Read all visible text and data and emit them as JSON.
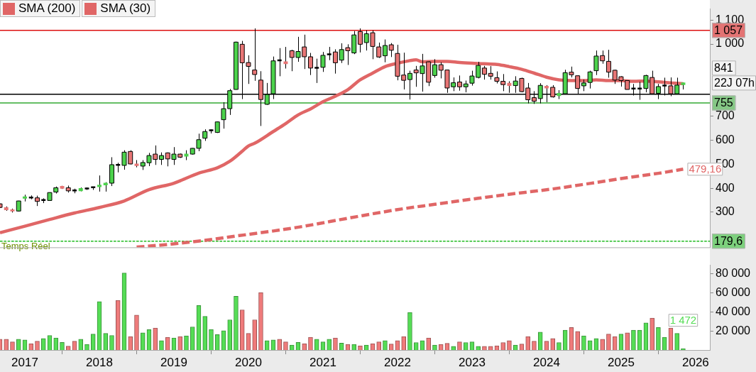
{
  "chart_data": [
    {
      "type": "candlestick",
      "x": [
        "2016-09",
        "2016-10",
        "2016-11",
        "2016-12",
        "2017-01",
        "2017-02",
        "2017-03",
        "2017-04",
        "2017-05",
        "2017-06",
        "2017-07",
        "2017-08",
        "2017-09",
        "2017-10",
        "2017-11",
        "2017-12",
        "2018-01",
        "2018-02",
        "2018-03",
        "2018-04",
        "2018-05",
        "2018-06",
        "2018-07",
        "2018-08",
        "2018-09",
        "2018-10",
        "2018-11",
        "2018-12",
        "2019-01",
        "2019-02",
        "2019-03",
        "2019-04",
        "2019-05",
        "2019-06",
        "2019-07",
        "2019-08",
        "2019-09",
        "2019-10",
        "2019-11",
        "2019-12",
        "2020-01",
        "2020-02",
        "2020-03",
        "2020-04",
        "2020-05",
        "2020-06",
        "2020-07",
        "2020-08",
        "2020-09",
        "2020-10",
        "2020-11",
        "2020-12",
        "2021-01",
        "2021-02",
        "2021-03",
        "2021-04",
        "2021-05",
        "2021-06",
        "2021-07",
        "2021-08",
        "2021-09",
        "2021-10",
        "2021-11",
        "2021-12",
        "2022-01",
        "2022-02",
        "2022-03",
        "2022-04",
        "2022-05",
        "2022-06",
        "2022-07",
        "2022-08",
        "2022-09",
        "2022-10",
        "2022-11",
        "2022-12",
        "2023-01",
        "2023-02",
        "2023-03",
        "2023-04",
        "2023-05",
        "2023-06",
        "2023-07",
        "2023-08",
        "2023-09",
        "2023-10",
        "2023-11",
        "2023-12",
        "2024-01",
        "2024-02",
        "2024-03",
        "2024-04",
        "2024-05",
        "2024-06",
        "2024-07",
        "2024-08",
        "2024-09",
        "2024-10",
        "2024-11",
        "2024-12",
        "2025-01",
        "2025-02",
        "2025-03",
        "2025-04",
        "2025-05",
        "2025-06",
        "2025-07",
        "2025-08",
        "2025-09",
        "2025-10",
        "2025-11"
      ],
      "ohlc": [
        [
          335,
          336,
          318,
          320
        ],
        [
          319,
          324,
          306,
          310
        ],
        [
          310,
          315,
          299,
          305
        ],
        [
          305,
          348,
          303,
          347
        ],
        [
          358,
          373,
          345,
          364
        ],
        [
          361,
          370,
          354,
          361
        ],
        [
          360,
          369,
          326,
          345
        ],
        [
          351,
          358,
          338,
          351
        ],
        [
          349,
          383,
          348,
          382
        ],
        [
          384,
          407,
          378,
          402
        ],
        [
          408,
          410,
          397,
          400
        ],
        [
          402,
          411,
          382,
          389
        ],
        [
          391,
          398,
          379,
          391
        ],
        [
          389,
          403,
          387,
          399
        ],
        [
          399,
          403,
          393,
          399
        ],
        [
          404,
          405,
          393,
          404
        ],
        [
          406,
          453,
          386,
          413
        ],
        [
          414,
          425,
          386,
          421
        ],
        [
          421,
          529,
          409,
          498
        ],
        [
          497,
          506,
          466,
          497
        ],
        [
          495,
          558,
          477,
          550
        ],
        [
          553,
          558,
          499,
          501
        ],
        [
          501,
          517,
          487,
          494
        ],
        [
          492,
          517,
          476,
          507
        ],
        [
          506,
          547,
          492,
          536
        ],
        [
          542,
          578,
          497,
          520
        ],
        [
          520,
          549,
          497,
          536
        ],
        [
          547,
          549,
          491,
          522
        ],
        [
          520,
          571,
          497,
          542
        ],
        [
          542,
          544,
          526,
          529
        ],
        [
          533,
          558,
          517,
          542
        ],
        [
          542,
          567,
          540,
          566
        ],
        [
          566,
          627,
          554,
          602
        ],
        [
          608,
          645,
          597,
          636
        ],
        [
          641,
          645,
          628,
          641
        ],
        [
          632,
          678,
          630,
          676
        ],
        [
          685,
          758,
          648,
          731
        ],
        [
          731,
          813,
          705,
          806
        ],
        [
          811,
          1010,
          810,
          1008
        ],
        [
          999,
          1013,
          771,
          922
        ],
        [
          923,
          953,
          834,
          907
        ],
        [
          892,
          1065,
          847,
          873
        ],
        [
          850,
          887,
          659,
          769
        ],
        [
          749,
          838,
          747,
          790
        ],
        [
          793,
          948,
          771,
          930
        ],
        [
          932,
          983,
          866,
          932
        ],
        [
          926,
          988,
          898,
          918
        ],
        [
          972,
          976,
          887,
          944
        ],
        [
          944,
          1030,
          926,
          969
        ],
        [
          988,
          1039,
          896,
          947
        ],
        [
          947,
          963,
          871,
          900
        ],
        [
          901,
          939,
          838,
          901
        ],
        [
          903,
          967,
          884,
          953
        ],
        [
          957,
          988,
          933,
          957
        ],
        [
          967,
          978,
          877,
          922
        ],
        [
          933,
          1003,
          921,
          977
        ],
        [
          985,
          999,
          913,
          972
        ],
        [
          963,
          1054,
          958,
          1038
        ],
        [
          1052,
          1065,
          965,
          999
        ],
        [
          1006,
          1057,
          973,
          1043
        ],
        [
          1047,
          1057,
          937,
          990
        ],
        [
          988,
          1006,
          942,
          946
        ],
        [
          951,
          1019,
          924,
          994
        ],
        [
          997,
          1004,
          946,
          974
        ],
        [
          961,
          997,
          849,
          866
        ],
        [
          871,
          964,
          811,
          849
        ],
        [
          852,
          889,
          769,
          878
        ],
        [
          892,
          909,
          822,
          880
        ],
        [
          877,
          959,
          802,
          909
        ],
        [
          926,
          928,
          825,
          841
        ],
        [
          869,
          937,
          860,
          914
        ],
        [
          914,
          924,
          857,
          891
        ],
        [
          892,
          893,
          797,
          817
        ],
        [
          822,
          861,
          804,
          839
        ],
        [
          842,
          869,
          806,
          822
        ],
        [
          822,
          848,
          799,
          834
        ],
        [
          837,
          889,
          827,
          867
        ],
        [
          861,
          926,
          857,
          911
        ],
        [
          900,
          909,
          852,
          874
        ],
        [
          878,
          908,
          852,
          866
        ],
        [
          860,
          886,
          836,
          845
        ],
        [
          845,
          875,
          804,
          831
        ],
        [
          837,
          845,
          797,
          827
        ],
        [
          827,
          866,
          797,
          846
        ],
        [
          857,
          860,
          799,
          802
        ],
        [
          817,
          838,
          753,
          768
        ],
        [
          777,
          804,
          751,
          762
        ],
        [
          773,
          837,
          753,
          828
        ],
        [
          824,
          829,
          758,
          817
        ],
        [
          820,
          829,
          777,
          780
        ],
        [
          785,
          808,
          771,
          795
        ],
        [
          793,
          893,
          792,
          881
        ],
        [
          883,
          906,
          861,
          872
        ],
        [
          868,
          870,
          793,
          815
        ],
        [
          826,
          852,
          804,
          838
        ],
        [
          840,
          889,
          815,
          884
        ],
        [
          889,
          973,
          871,
          950
        ],
        [
          952,
          973,
          918,
          930
        ],
        [
          928,
          976,
          860,
          883
        ],
        [
          891,
          893,
          834,
          850
        ],
        [
          864,
          866,
          823,
          848
        ],
        [
          848,
          849,
          811,
          811
        ],
        [
          815,
          834,
          786,
          815
        ],
        [
          815,
          843,
          768,
          815
        ],
        [
          815,
          872,
          799,
          869
        ],
        [
          861,
          889,
          793,
          793
        ],
        [
          795,
          834,
          771,
          823
        ],
        [
          827,
          860,
          786,
          827
        ],
        [
          826,
          861,
          783,
          793
        ],
        [
          793,
          860,
          793,
          829
        ],
        [
          831,
          840,
          811,
          838
        ]
      ],
      "colors": [
        "#e87575",
        "#e87575",
        "#e87575",
        "#4cd24c",
        "#4cd24c",
        "#000000",
        "#e87575",
        "#000000",
        "#4cd24c",
        "#4cd24c",
        "#e87575",
        "#e87575",
        "#000000",
        "#4cd24c",
        "#000000",
        "#000000",
        "#4cd24c",
        "#4cd24c",
        "#4cd24c",
        "#000000",
        "#4cd24c",
        "#e87575",
        "#e87575",
        "#4cd24c",
        "#4cd24c",
        "#e87575",
        "#4cd24c",
        "#e87575",
        "#4cd24c",
        "#e87575",
        "#4cd24c",
        "#4cd24c",
        "#4cd24c",
        "#4cd24c",
        "#000000",
        "#4cd24c",
        "#4cd24c",
        "#4cd24c",
        "#4cd24c",
        "#e87575",
        "#e87575",
        "#e87575",
        "#e87575",
        "#4cd24c",
        "#4cd24c",
        "#000000",
        "#e87575",
        "#e87575",
        "#4cd24c",
        "#e87575",
        "#e87575",
        "#000000",
        "#4cd24c",
        "#000000",
        "#e87575",
        "#4cd24c",
        "#e87575",
        "#4cd24c",
        "#e87575",
        "#4cd24c",
        "#e87575",
        "#e87575",
        "#4cd24c",
        "#e87575",
        "#e87575",
        "#e87575",
        "#4cd24c",
        "#e87575",
        "#4cd24c",
        "#e87575",
        "#4cd24c",
        "#e87575",
        "#e87575",
        "#4cd24c",
        "#e87575",
        "#4cd24c",
        "#4cd24c",
        "#4cd24c",
        "#e87575",
        "#e87575",
        "#e87575",
        "#e87575",
        "#e87575",
        "#4cd24c",
        "#e87575",
        "#e87575",
        "#e87575",
        "#4cd24c",
        "#e87575",
        "#e87575",
        "#4cd24c",
        "#4cd24c",
        "#e87575",
        "#e87575",
        "#4cd24c",
        "#4cd24c",
        "#4cd24c",
        "#e87575",
        "#e87575",
        "#e87575",
        "#e87575",
        "#e87575",
        "#000000",
        "#000000",
        "#4cd24c",
        "#e87575",
        "#4cd24c",
        "#000000",
        "#e87575",
        "#4cd24c",
        "#4cd24c"
      ],
      "series": [
        {
          "name": "SMA (200)",
          "type": "line",
          "color": "#e06666",
          "line_style": "dashed",
          "x": [
            "2018-07",
            "2018-12",
            "2019-06",
            "2019-11",
            "2020-05",
            "2020-10",
            "2021-05",
            "2022-01",
            "2022-07",
            "2023-02",
            "2023-08",
            "2024-02",
            "2024-08",
            "2025-02",
            "2025-07",
            "2025-11"
          ],
          "values": [
            155,
            166,
            183,
            201,
            222,
            242,
            275,
            311,
            333,
            358,
            378,
            397,
            420,
            444,
            462,
            479.16
          ],
          "value_labels": [
            null,
            null,
            null,
            null,
            null,
            null,
            null,
            null,
            null,
            null,
            null,
            null,
            null,
            null,
            null,
            "479,16"
          ]
        },
        {
          "name": "SMA (30)",
          "type": "line",
          "color": "#e06666",
          "x": [
            "2016-09",
            "2017-01",
            "2017-05",
            "2017-09",
            "2018-01",
            "2018-05",
            "2018-09",
            "2019-01",
            "2019-05",
            "2019-08",
            "2019-10",
            "2019-12",
            "2020-01",
            "2020-02",
            "2020-05",
            "2020-07",
            "2020-09",
            "2020-11",
            "2021-01",
            "2021-03",
            "2021-05",
            "2021-07",
            "2021-09",
            "2021-11",
            "2022-01",
            "2022-03",
            "2022-04",
            "2022-05",
            "2022-07",
            "2022-09",
            "2022-11",
            "2023-01",
            "2023-03",
            "2023-05",
            "2023-07",
            "2023-09",
            "2023-11",
            "2024-01",
            "2024-03",
            "2024-05",
            "2024-07",
            "2024-09",
            "2024-11",
            "2025-01",
            "2025-03",
            "2025-05",
            "2025-07",
            "2025-09",
            "2025-11"
          ],
          "values": [
            215,
            242,
            270,
            297,
            320,
            347,
            394,
            421,
            463,
            485,
            512,
            554,
            576,
            587,
            636,
            669,
            705,
            730,
            760,
            783,
            810,
            851,
            879,
            906,
            920,
            931,
            934,
            926,
            928,
            928,
            923,
            920,
            918,
            915,
            906,
            895,
            879,
            862,
            851,
            848,
            848,
            851,
            848,
            848,
            845,
            846,
            843,
            838,
            835
          ]
        }
      ],
      "xlim": [
        "2016-09",
        "2026-03-10"
      ],
      "xticks": [
        "2017",
        "2018",
        "2019",
        "2020",
        "2021",
        "2022",
        "2023",
        "2024",
        "2025",
        "2026"
      ],
      "ylim": [
        154,
        1146
      ],
      "yticks": [
        300,
        400,
        500,
        600,
        700,
        {
          "value": 1000,
          "label": "1 000"
        },
        {
          "value": 1100,
          "label": "1 100"
        }
      ],
      "tick_labels": "y",
      "legend": "top left",
      "ref_lines": [
        {
          "axis": "y",
          "value": 1057,
          "label": "1 057",
          "color": "#dd1111"
        },
        {
          "axis": "y",
          "value": 791,
          "color": "#000000"
        },
        {
          "axis": "y",
          "value": 755,
          "label": "755",
          "color": "#33aa33"
        },
        {
          "axis": "y",
          "value": 179.6,
          "label": "179,6",
          "color": "#22bb22",
          "line_style": "dashed"
        }
      ],
      "annotations": [
        "841",
        "22J 07h",
        {
          "text": "Temps Réel",
          "x": "2016-09",
          "y": 179.6
        }
      ]
    },
    {
      "type": "bar",
      "x": [
        "2016-09",
        "2016-10",
        "2016-11",
        "2016-12",
        "2017-01",
        "2017-02",
        "2017-03",
        "2017-04",
        "2017-05",
        "2017-06",
        "2017-07",
        "2017-08",
        "2017-09",
        "2017-10",
        "2017-11",
        "2017-12",
        "2018-01",
        "2018-02",
        "2018-03",
        "2018-04",
        "2018-05",
        "2018-06",
        "2018-07",
        "2018-08",
        "2018-09",
        "2018-10",
        "2018-11",
        "2018-12",
        "2019-01",
        "2019-02",
        "2019-03",
        "2019-04",
        "2019-05",
        "2019-06",
        "2019-07",
        "2019-08",
        "2019-09",
        "2019-10",
        "2019-11",
        "2019-12",
        "2020-01",
        "2020-02",
        "2020-03",
        "2020-04",
        "2020-05",
        "2020-06",
        "2020-07",
        "2020-08",
        "2020-09",
        "2020-10",
        "2020-11",
        "2020-12",
        "2021-01",
        "2021-02",
        "2021-03",
        "2021-04",
        "2021-05",
        "2021-06",
        "2021-07",
        "2021-08",
        "2021-09",
        "2021-10",
        "2021-11",
        "2021-12",
        "2022-01",
        "2022-02",
        "2022-03",
        "2022-04",
        "2022-05",
        "2022-06",
        "2022-07",
        "2022-08",
        "2022-09",
        "2022-10",
        "2022-11",
        "2022-12",
        "2023-01",
        "2023-02",
        "2023-03",
        "2023-04",
        "2023-05",
        "2023-06",
        "2023-07",
        "2023-08",
        "2023-09",
        "2023-10",
        "2023-11",
        "2023-12",
        "2024-01",
        "2024-02",
        "2024-03",
        "2024-04",
        "2024-05",
        "2024-06",
        "2024-07",
        "2024-08",
        "2024-09",
        "2024-10",
        "2024-11",
        "2024-12",
        "2025-01",
        "2025-02",
        "2025-03",
        "2025-04",
        "2025-05",
        "2025-06",
        "2025-07",
        "2025-08",
        "2025-09",
        "2025-10",
        "2025-11"
      ],
      "values": [
        11300,
        11300,
        8500,
        11300,
        10600,
        6600,
        9200,
        12000,
        15300,
        12700,
        8000,
        4000,
        9200,
        11300,
        5900,
        16700,
        50800,
        17400,
        15300,
        52200,
        80800,
        14100,
        36700,
        18100,
        21400,
        23000,
        9900,
        13400,
        12700,
        14100,
        14800,
        24200,
        46800,
        35300,
        21600,
        16200,
        20200,
        31700,
        56400,
        42100,
        17400,
        31700,
        60400,
        9900,
        10600,
        11300,
        8500,
        5200,
        8000,
        6600,
        13400,
        11300,
        8500,
        11300,
        12700,
        7300,
        5900,
        5900,
        4500,
        5200,
        6600,
        8500,
        9900,
        6300,
        9900,
        14100,
        39500,
        7800,
        9900,
        12700,
        5200,
        5900,
        7000,
        3800,
        8500,
        7800,
        8500,
        3800,
        3800,
        3800,
        4500,
        7800,
        9900,
        5200,
        6300,
        14100,
        9200,
        18800,
        9200,
        12000,
        7800,
        20900,
        23700,
        19500,
        14800,
        9900,
        12000,
        11300,
        16700,
        14100,
        16700,
        18100,
        20900,
        20900,
        28400,
        33400,
        23700,
        13400,
        23000,
        17400,
        1472
      ],
      "colors": [
        "#ef7b7b",
        "#ef7b7b",
        "#ef7b7b",
        "#55dd55",
        "#55dd55",
        "#ef7b7b",
        "#ef7b7b",
        "#55dd55",
        "#55dd55",
        "#55dd55",
        "#55dd55",
        "#ef7b7b",
        "#ef7b7b",
        "#55dd55",
        "#55dd55",
        "#55dd55",
        "#55dd55",
        "#55dd55",
        "#55dd55",
        "#ef7b7b",
        "#55dd55",
        "#ef7b7b",
        "#ef7b7b",
        "#55dd55",
        "#55dd55",
        "#ef7b7b",
        "#55dd55",
        "#ef7b7b",
        "#55dd55",
        "#ef7b7b",
        "#55dd55",
        "#55dd55",
        "#55dd55",
        "#55dd55",
        "#55dd55",
        "#55dd55",
        "#55dd55",
        "#55dd55",
        "#55dd55",
        "#ef7b7b",
        "#ef7b7b",
        "#ef7b7b",
        "#ef7b7b",
        "#55dd55",
        "#55dd55",
        "#ef7b7b",
        "#ef7b7b",
        "#55dd55",
        "#55dd55",
        "#ef7b7b",
        "#ef7b7b",
        "#55dd55",
        "#55dd55",
        "#55dd55",
        "#ef7b7b",
        "#55dd55",
        "#ef7b7b",
        "#55dd55",
        "#ef7b7b",
        "#55dd55",
        "#ef7b7b",
        "#ef7b7b",
        "#55dd55",
        "#ef7b7b",
        "#ef7b7b",
        "#ef7b7b",
        "#55dd55",
        "#55dd55",
        "#55dd55",
        "#ef7b7b",
        "#55dd55",
        "#ef7b7b",
        "#ef7b7b",
        "#55dd55",
        "#ef7b7b",
        "#55dd55",
        "#55dd55",
        "#55dd55",
        "#ef7b7b",
        "#ef7b7b",
        "#ef7b7b",
        "#ef7b7b",
        "#ef7b7b",
        "#55dd55",
        "#ef7b7b",
        "#ef7b7b",
        "#ef7b7b",
        "#55dd55",
        "#ef7b7b",
        "#ef7b7b",
        "#55dd55",
        "#55dd55",
        "#ef7b7b",
        "#ef7b7b",
        "#55dd55",
        "#55dd55",
        "#55dd55",
        "#ef7b7b",
        "#ef7b7b",
        "#ef7b7b",
        "#55dd55",
        "#ef7b7b",
        "#55dd55",
        "#55dd55",
        "#55dd55",
        "#ef7b7b",
        "#55dd55",
        "#55dd55",
        "#ef7b7b",
        "#55dd55",
        "#55dd55"
      ],
      "value_labels": [
        null,
        null,
        null,
        null,
        null,
        null,
        null,
        null,
        null,
        null,
        null,
        null,
        null,
        null,
        null,
        null,
        null,
        null,
        null,
        null,
        null,
        null,
        null,
        null,
        null,
        null,
        null,
        null,
        null,
        null,
        null,
        null,
        null,
        null,
        null,
        null,
        null,
        null,
        null,
        null,
        null,
        null,
        null,
        null,
        null,
        null,
        null,
        null,
        null,
        null,
        null,
        null,
        null,
        null,
        null,
        null,
        null,
        null,
        null,
        null,
        null,
        null,
        null,
        null,
        null,
        null,
        null,
        null,
        null,
        null,
        null,
        null,
        null,
        null,
        null,
        null,
        null,
        null,
        null,
        null,
        null,
        null,
        null,
        null,
        null,
        null,
        null,
        null,
        null,
        null,
        null,
        null,
        null,
        null,
        null,
        null,
        null,
        null,
        null,
        null,
        null,
        null,
        null,
        null,
        null,
        null,
        null,
        null,
        null,
        null,
        "1 472"
      ],
      "xlim": [
        "2016-09",
        "2026-03-10"
      ],
      "xticks": [
        "2017",
        "2018",
        "2019",
        "2020",
        "2021",
        "2022",
        "2023",
        "2024",
        "2025",
        "2026"
      ],
      "ylim": [
        0,
        89000
      ],
      "yticks": [
        {
          "value": 20000,
          "label": "20 000"
        },
        {
          "value": 40000,
          "label": "40 000"
        },
        {
          "value": 60000,
          "label": "60 000"
        },
        {
          "value": 80000,
          "label": "80 000"
        }
      ]
    }
  ]
}
